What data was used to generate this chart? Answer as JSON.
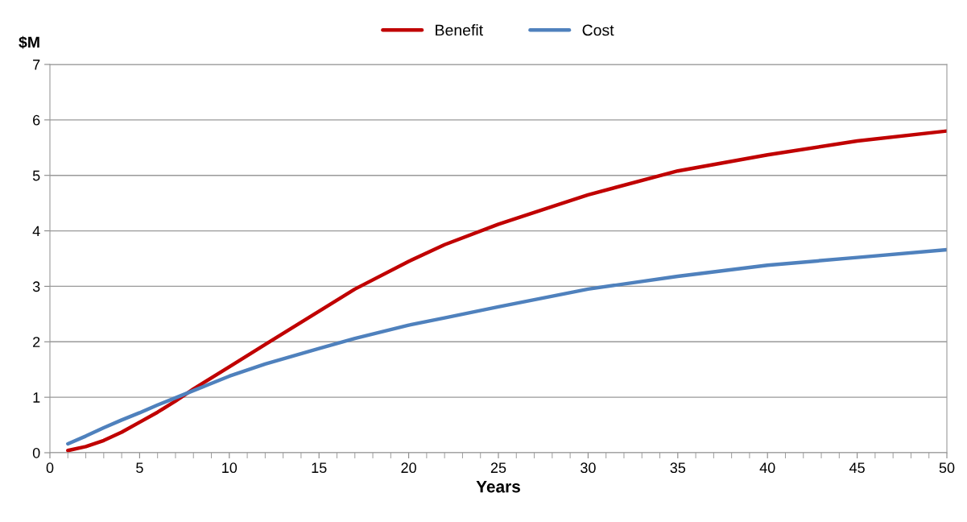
{
  "chart_data": {
    "type": "line",
    "xlabel": "Years",
    "ylabel": "$M",
    "series": [
      {
        "name": "Benefit",
        "color": "#c00000",
        "x": [
          1,
          2,
          3,
          4,
          5,
          6,
          7,
          8,
          10,
          12,
          15,
          17,
          20,
          22,
          25,
          30,
          35,
          40,
          45,
          50
        ],
        "values": [
          0.04,
          0.11,
          0.22,
          0.37,
          0.55,
          0.73,
          0.93,
          1.15,
          1.55,
          1.95,
          2.55,
          2.95,
          3.45,
          3.75,
          4.12,
          4.65,
          5.08,
          5.37,
          5.62,
          5.8
        ]
      },
      {
        "name": "Cost",
        "color": "#4f81bd",
        "x": [
          1,
          2,
          3,
          4,
          5,
          6,
          7,
          8,
          10,
          12,
          15,
          17,
          20,
          22,
          25,
          30,
          35,
          40,
          45,
          50
        ],
        "values": [
          0.16,
          0.3,
          0.45,
          0.59,
          0.72,
          0.86,
          0.99,
          1.12,
          1.38,
          1.6,
          1.88,
          2.06,
          2.3,
          2.43,
          2.63,
          2.95,
          3.18,
          3.38,
          3.52,
          3.66
        ]
      }
    ],
    "xlim": [
      0,
      50
    ],
    "xticks": [
      0,
      5,
      10,
      15,
      20,
      25,
      30,
      35,
      40,
      45,
      50
    ],
    "ylim": [
      0,
      7
    ],
    "yticks": [
      0,
      1,
      2,
      3,
      4,
      5,
      6,
      7
    ],
    "grid": "y",
    "legend": "top",
    "marker": "none",
    "line_style": "solid"
  }
}
